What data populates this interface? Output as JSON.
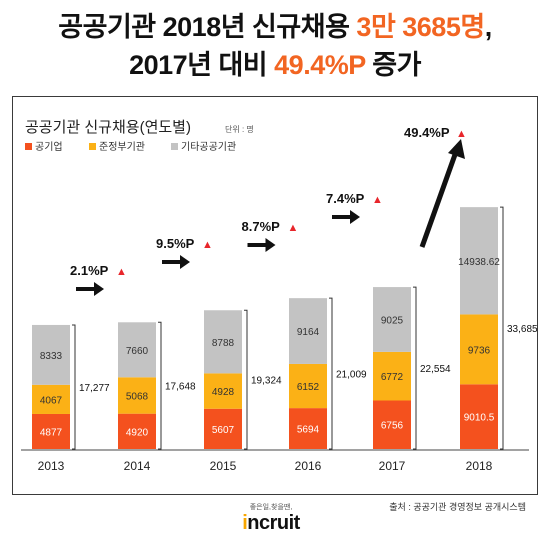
{
  "headline": {
    "line1_a": "공공기관 2018년 신규채용 ",
    "line1_b": "3만 3685명",
    "line1_c": ",",
    "line2_a": "2017년 대비 ",
    "line2_b": "49.4%P",
    "line2_c": " 증가"
  },
  "colors": {
    "accent": "#f26522",
    "public_corp": "#f4511e",
    "quasi_gov": "#fbb116",
    "other_public": "#c3c3c3",
    "growth_up": "#e8262b",
    "arrow": "#111111"
  },
  "source": "출처 : 공공기관 경영정보 공개시스템",
  "brand": {
    "tagline": "좋은일,찾을땐,",
    "logo_dot": "i",
    "logo_rest": "ncruit"
  },
  "chart_data": {
    "type": "bar",
    "stacked": true,
    "title": "공공기관 신규채용(연도별)",
    "unit": "단위 : 명",
    "legend_position": "top-left",
    "categories": [
      "2013",
      "2014",
      "2015",
      "2016",
      "2017",
      "2018"
    ],
    "series": [
      {
        "name": "공기업",
        "color": "#f4511e",
        "values": [
          4877,
          4920,
          5607,
          5694,
          6756,
          9010.5
        ],
        "labels": [
          "4877",
          "4920",
          "5607",
          "5694",
          "6756",
          "9010.5"
        ]
      },
      {
        "name": "준정부기관",
        "color": "#fbb116",
        "values": [
          4067,
          5068,
          4928,
          6152,
          6772,
          9736
        ],
        "labels": [
          "4067",
          "5068",
          "4928",
          "6152",
          "6772",
          "9736"
        ]
      },
      {
        "name": "기타공공기관",
        "color": "#c3c3c3",
        "values": [
          8333,
          7660,
          8788,
          9164,
          9025,
          14938.62
        ],
        "labels": [
          "8333",
          "7660",
          "8788",
          "9164",
          "9025",
          "14938.62"
        ]
      }
    ],
    "totals": [
      "17,277",
      "17,648",
      "19,324",
      "21,009",
      "22,554",
      "33,685.12"
    ],
    "growth": [
      "2.1%P",
      "9.5%P",
      "8.7%P",
      "7.4%P",
      "49.4%P"
    ],
    "up_symbol": "▲",
    "ylim": [
      0,
      34000
    ],
    "grid": false
  }
}
